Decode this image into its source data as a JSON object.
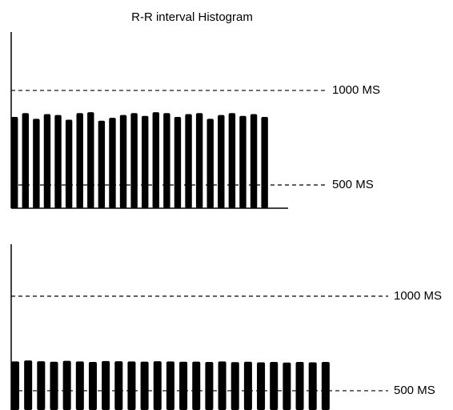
{
  "chart_data": [
    {
      "type": "bar",
      "title": "R-R interval Histogram",
      "values": [
        860,
        880,
        850,
        875,
        870,
        845,
        880,
        885,
        840,
        855,
        870,
        880,
        865,
        885,
        880,
        860,
        875,
        880,
        850,
        870,
        880,
        865,
        875,
        860
      ],
      "color": "#000000",
      "ylim": [
        377,
        1309
      ],
      "yticks": [
        {
          "value": 1000,
          "label": "1000 MS"
        },
        {
          "value": 500,
          "label": "500 MS"
        }
      ]
    },
    {
      "type": "bar",
      "values": [
        655,
        660,
        656,
        653,
        658,
        655,
        652,
        657,
        656,
        655,
        654,
        656,
        655,
        653,
        654,
        652,
        655,
        651,
        653,
        650,
        652,
        649,
        652,
        650,
        652
      ],
      "color": "#000000",
      "ylim": [
        398,
        1275
      ],
      "yticks": [
        {
          "value": 1000,
          "label": "1000 MS"
        },
        {
          "value": 500,
          "label": "500 MS"
        }
      ]
    }
  ]
}
